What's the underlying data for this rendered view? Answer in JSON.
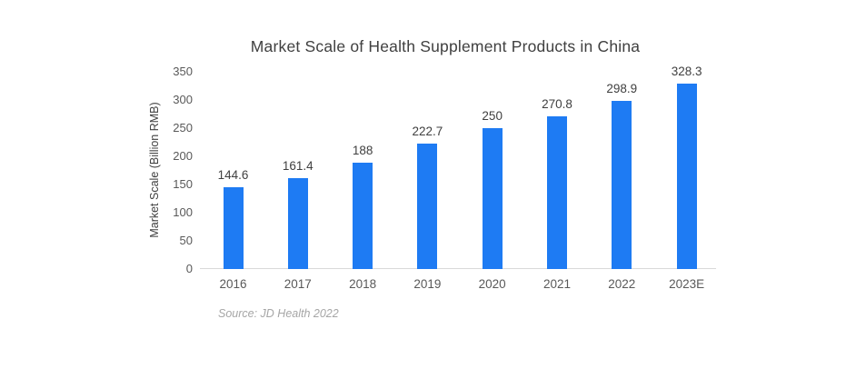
{
  "chart_data": {
    "type": "bar",
    "title": "Market Scale of Health Supplement Products in China",
    "xlabel": "",
    "ylabel": "Market Scale (Billion RMB)",
    "categories": [
      "2016",
      "2017",
      "2018",
      "2019",
      "2020",
      "2021",
      "2022",
      "2023E"
    ],
    "values": [
      144.6,
      161.4,
      188,
      222.7,
      250,
      270.8,
      298.9,
      328.3
    ],
    "value_labels": [
      "144.6",
      "161.4",
      "188",
      "222.7",
      "250",
      "270.8",
      "298.9",
      "328.3"
    ],
    "ylim": [
      0,
      350
    ],
    "yticks": [
      0,
      50,
      100,
      150,
      200,
      250,
      300,
      350
    ],
    "grid": false,
    "legend": false,
    "bar_color": "#1e7bf3",
    "source": "Source: JD Health 2022"
  },
  "colors": {
    "bar": "#1e7bf3",
    "axis_line": "#d9d9d9",
    "title_text": "#404040",
    "tick_text": "#595959",
    "value_label_text": "#3f3f3f",
    "source_text": "#a6a6a6",
    "background": "#ffffff"
  }
}
